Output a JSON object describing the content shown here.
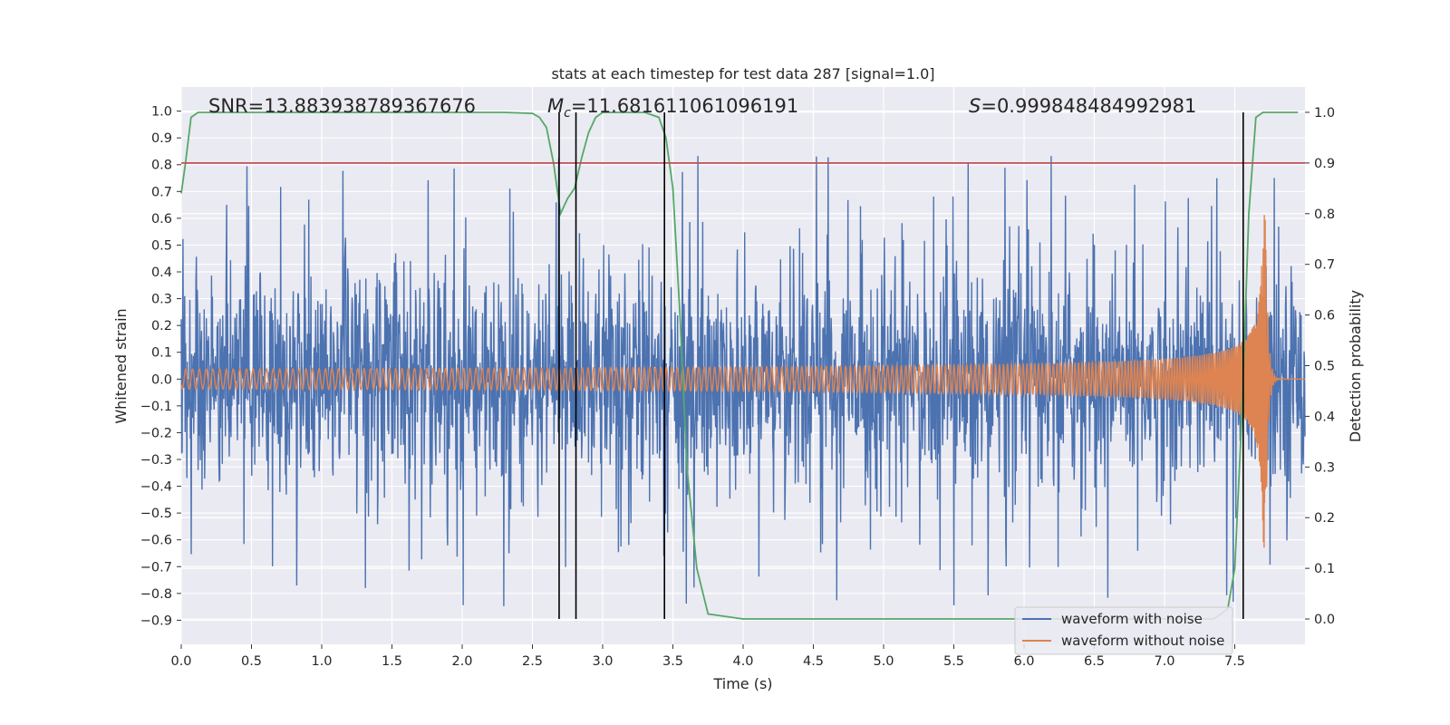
{
  "chart_data": {
    "type": "line",
    "title": "stats at each timestep for test data 287 [signal=1.0]",
    "xlabel": "Time (s)",
    "ylabel_left": "Whitened strain",
    "ylabel_right": "Detection probability",
    "xlim": [
      0.0,
      8.0
    ],
    "ylim_left": [
      -0.99,
      1.09
    ],
    "ylim_right": [
      -0.05,
      1.05
    ],
    "x_ticks": [
      "0.0",
      "0.5",
      "1.0",
      "1.5",
      "2.0",
      "2.5",
      "3.0",
      "3.5",
      "4.0",
      "4.5",
      "5.0",
      "5.5",
      "6.0",
      "6.5",
      "7.0",
      "7.5"
    ],
    "y_left_ticks": [
      "1.0",
      "0.9",
      "0.8",
      "0.7",
      "0.6",
      "0.5",
      "0.4",
      "0.3",
      "0.2",
      "0.1",
      "0.0",
      "−0.1",
      "−0.2",
      "−0.3",
      "−0.4",
      "−0.5",
      "−0.6",
      "−0.7",
      "−0.8",
      "−0.9"
    ],
    "y_right_ticks": [
      "1.0",
      "0.9",
      "0.8",
      "0.7",
      "0.6",
      "0.5",
      "0.4",
      "0.3",
      "0.2",
      "0.1",
      "0.0"
    ],
    "grid": true,
    "legend_placement": "lower-right",
    "stats": {
      "snr": "SNR=13.883938789367676",
      "mc_symbol": "M",
      "mc_sub": "c",
      "mc_value": "=11.681611061096191",
      "s_symbol": "S",
      "s_value": "=0.999848484992981"
    },
    "threshold_line": {
      "axis": "right",
      "y": 0.9,
      "color": "#c44e52"
    },
    "vertical_markers_s": [
      2.69,
      2.81,
      3.44,
      7.56
    ],
    "series": [
      {
        "name": "waveform with noise",
        "axis": "left",
        "color": "#4c72b0",
        "description_range": [
          -0.9,
          1.0
        ]
      },
      {
        "name": "waveform without noise",
        "axis": "left",
        "color": "#dd8452",
        "chirp_end_s": 7.72
      },
      {
        "axis": "right",
        "color": "#55a868",
        "x": [
          0.0,
          0.03,
          0.07,
          0.12,
          0.2,
          0.5,
          1.0,
          1.5,
          2.0,
          2.3,
          2.5,
          2.55,
          2.6,
          2.65,
          2.7,
          2.75,
          2.8,
          2.85,
          2.9,
          2.95,
          3.0,
          3.1,
          3.3,
          3.4,
          3.45,
          3.5,
          3.55,
          3.6,
          3.67,
          3.75,
          4.0,
          5.0,
          6.0,
          7.0,
          7.35,
          7.45,
          7.5,
          7.55,
          7.6,
          7.65,
          7.7,
          7.8,
          7.95
        ],
        "y": [
          0.84,
          0.9,
          0.99,
          1.0,
          1.0,
          1.0,
          1.0,
          1.0,
          1.0,
          1.0,
          0.998,
          0.99,
          0.97,
          0.9,
          0.8,
          0.83,
          0.85,
          0.91,
          0.96,
          0.99,
          1.0,
          1.0,
          1.0,
          0.99,
          0.95,
          0.85,
          0.6,
          0.3,
          0.1,
          0.01,
          0.0,
          0.0,
          0.0,
          0.0,
          0.0,
          0.02,
          0.1,
          0.4,
          0.8,
          0.99,
          1.0,
          1.0,
          1.0
        ]
      }
    ]
  }
}
